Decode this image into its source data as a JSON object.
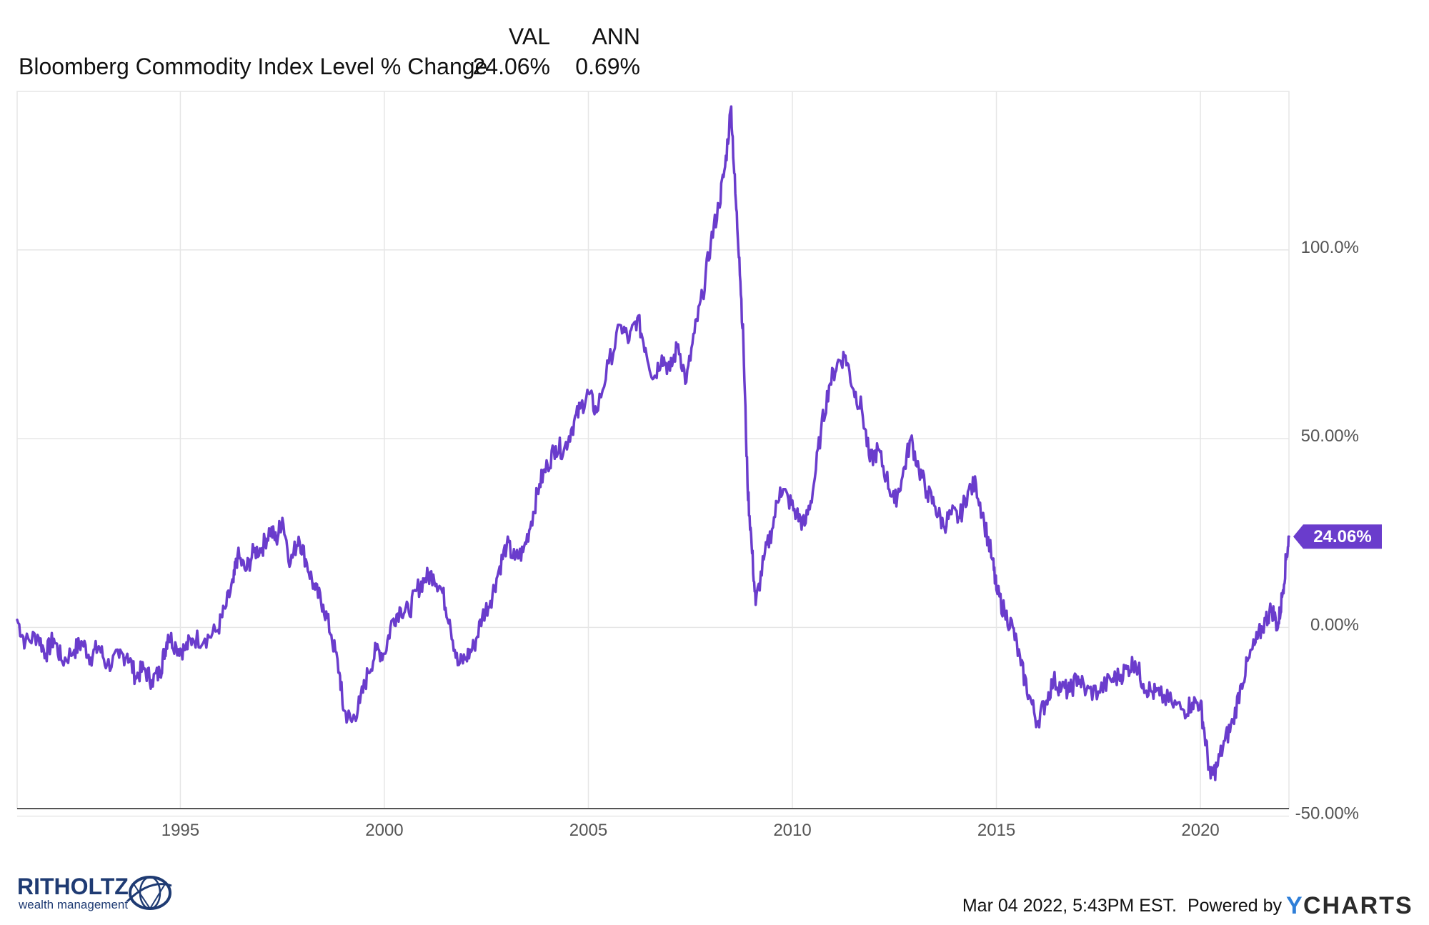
{
  "header": {
    "col_val": "VAL",
    "col_ann": "ANN",
    "series_label": "Bloomberg Commodity Index Level % Change",
    "val": "24.06%",
    "ann": "0.69%"
  },
  "footer": {
    "timestamp": "Mar 04 2022, 5:43PM EST.",
    "powered_by": "Powered by",
    "ycharts": "CHARTS",
    "ycharts_y": "Y",
    "logo_title": "RITHOLTZ",
    "logo_subtitle": "wealth management"
  },
  "colors": {
    "series": "#6a3ccc",
    "grid": "#e6e6e6",
    "axis": "#555555"
  },
  "chart_data": {
    "type": "line",
    "title": "",
    "xlabel": "",
    "ylabel": "",
    "xlim": [
      1991.0,
      2022.17
    ],
    "ylim": [
      -48,
      142
    ],
    "x_ticks": [
      1995,
      2000,
      2005,
      2010,
      2015,
      2020
    ],
    "x_tick_labels": [
      "1995",
      "2000",
      "2005",
      "2010",
      "2015",
      "2020"
    ],
    "y_ticks": [
      100,
      50,
      0,
      -50
    ],
    "y_tick_labels": [
      "100.0%",
      "50.00%",
      "0.00%",
      "-50.00%"
    ],
    "grid": true,
    "last_value_label": "24.06%",
    "series": [
      {
        "name": "Bloomberg Commodity Index Level % Change",
        "color": "#6a3ccc",
        "points": [
          [
            1991.0,
            2
          ],
          [
            1991.2,
            -4
          ],
          [
            1991.5,
            -2
          ],
          [
            1991.7,
            -7
          ],
          [
            1991.9,
            -3
          ],
          [
            1992.1,
            -9
          ],
          [
            1992.4,
            -6
          ],
          [
            1992.6,
            -4
          ],
          [
            1992.8,
            -8
          ],
          [
            1993.0,
            -5
          ],
          [
            1993.2,
            -10
          ],
          [
            1993.5,
            -8
          ],
          [
            1993.7,
            -7
          ],
          [
            1993.9,
            -13
          ],
          [
            1994.1,
            -11
          ],
          [
            1994.3,
            -14
          ],
          [
            1994.5,
            -12
          ],
          [
            1994.6,
            -7
          ],
          [
            1994.7,
            -2
          ],
          [
            1994.9,
            -5
          ],
          [
            1995.1,
            -6
          ],
          [
            1995.3,
            -3
          ],
          [
            1995.6,
            -3
          ],
          [
            1995.9,
            -1
          ],
          [
            1996.1,
            5
          ],
          [
            1996.3,
            12
          ],
          [
            1996.4,
            19
          ],
          [
            1996.6,
            15
          ],
          [
            1996.8,
            20
          ],
          [
            1997.0,
            21
          ],
          [
            1997.2,
            26
          ],
          [
            1997.35,
            23
          ],
          [
            1997.5,
            29
          ],
          [
            1997.7,
            17
          ],
          [
            1997.9,
            24
          ],
          [
            1998.1,
            17
          ],
          [
            1998.3,
            10
          ],
          [
            1998.5,
            6
          ],
          [
            1998.7,
            -2
          ],
          [
            1998.9,
            -12
          ],
          [
            1999.0,
            -22
          ],
          [
            1999.2,
            -25
          ],
          [
            1999.4,
            -20
          ],
          [
            1999.6,
            -12
          ],
          [
            1999.8,
            -6
          ],
          [
            2000.0,
            -7
          ],
          [
            2000.2,
            2
          ],
          [
            2000.4,
            5
          ],
          [
            2000.6,
            4
          ],
          [
            2000.8,
            10
          ],
          [
            2001.0,
            13
          ],
          [
            2001.2,
            14
          ],
          [
            2001.4,
            10
          ],
          [
            2001.6,
            2
          ],
          [
            2001.8,
            -10
          ],
          [
            2002.0,
            -8
          ],
          [
            2002.2,
            -5
          ],
          [
            2002.4,
            3
          ],
          [
            2002.6,
            7
          ],
          [
            2002.8,
            15
          ],
          [
            2003.0,
            22
          ],
          [
            2003.2,
            18
          ],
          [
            2003.4,
            20
          ],
          [
            2003.6,
            28
          ],
          [
            2003.8,
            38
          ],
          [
            2004.0,
            43
          ],
          [
            2004.2,
            48
          ],
          [
            2004.4,
            47
          ],
          [
            2004.6,
            53
          ],
          [
            2004.8,
            58
          ],
          [
            2005.0,
            62
          ],
          [
            2005.2,
            57
          ],
          [
            2005.5,
            70
          ],
          [
            2005.8,
            80
          ],
          [
            2006.0,
            76
          ],
          [
            2006.2,
            82
          ],
          [
            2006.4,
            74
          ],
          [
            2006.6,
            66
          ],
          [
            2006.8,
            72
          ],
          [
            2007.0,
            68
          ],
          [
            2007.2,
            75
          ],
          [
            2007.4,
            65
          ],
          [
            2007.6,
            78
          ],
          [
            2007.8,
            88
          ],
          [
            2008.0,
            102
          ],
          [
            2008.2,
            112
          ],
          [
            2008.35,
            122
          ],
          [
            2008.5,
            138
          ],
          [
            2008.6,
            115
          ],
          [
            2008.7,
            98
          ],
          [
            2008.8,
            75
          ],
          [
            2008.9,
            38
          ],
          [
            2009.0,
            22
          ],
          [
            2009.1,
            6
          ],
          [
            2009.3,
            18
          ],
          [
            2009.5,
            26
          ],
          [
            2009.7,
            37
          ],
          [
            2009.9,
            34
          ],
          [
            2010.1,
            30
          ],
          [
            2010.3,
            27
          ],
          [
            2010.5,
            36
          ],
          [
            2010.7,
            52
          ],
          [
            2010.9,
            64
          ],
          [
            2011.1,
            70
          ],
          [
            2011.3,
            72
          ],
          [
            2011.5,
            63
          ],
          [
            2011.7,
            58
          ],
          [
            2011.9,
            44
          ],
          [
            2012.1,
            47
          ],
          [
            2012.3,
            40
          ],
          [
            2012.5,
            33
          ],
          [
            2012.7,
            40
          ],
          [
            2012.9,
            50
          ],
          [
            2013.1,
            42
          ],
          [
            2013.3,
            36
          ],
          [
            2013.5,
            32
          ],
          [
            2013.7,
            27
          ],
          [
            2013.9,
            30
          ],
          [
            2014.1,
            29
          ],
          [
            2014.3,
            36
          ],
          [
            2014.5,
            38
          ],
          [
            2014.7,
            28
          ],
          [
            2014.9,
            18
          ],
          [
            2015.0,
            10
          ],
          [
            2015.2,
            4
          ],
          [
            2015.4,
            0
          ],
          [
            2015.6,
            -10
          ],
          [
            2015.8,
            -18
          ],
          [
            2016.0,
            -25
          ],
          [
            2016.2,
            -20
          ],
          [
            2016.4,
            -14
          ],
          [
            2016.6,
            -16
          ],
          [
            2016.8,
            -17
          ],
          [
            2017.0,
            -13
          ],
          [
            2017.2,
            -17
          ],
          [
            2017.5,
            -17
          ],
          [
            2017.8,
            -14
          ],
          [
            2018.0,
            -13
          ],
          [
            2018.2,
            -11
          ],
          [
            2018.4,
            -9
          ],
          [
            2018.6,
            -15
          ],
          [
            2018.8,
            -17
          ],
          [
            2019.0,
            -18
          ],
          [
            2019.3,
            -20
          ],
          [
            2019.6,
            -22
          ],
          [
            2019.8,
            -20
          ],
          [
            2020.0,
            -20
          ],
          [
            2020.1,
            -28
          ],
          [
            2020.25,
            -40
          ],
          [
            2020.4,
            -37
          ],
          [
            2020.6,
            -30
          ],
          [
            2020.8,
            -25
          ],
          [
            2021.0,
            -15
          ],
          [
            2021.2,
            -8
          ],
          [
            2021.4,
            -3
          ],
          [
            2021.6,
            2
          ],
          [
            2021.75,
            5
          ],
          [
            2021.9,
            0
          ],
          [
            2022.0,
            8
          ],
          [
            2022.1,
            18
          ],
          [
            2022.17,
            24.06
          ]
        ]
      }
    ]
  }
}
